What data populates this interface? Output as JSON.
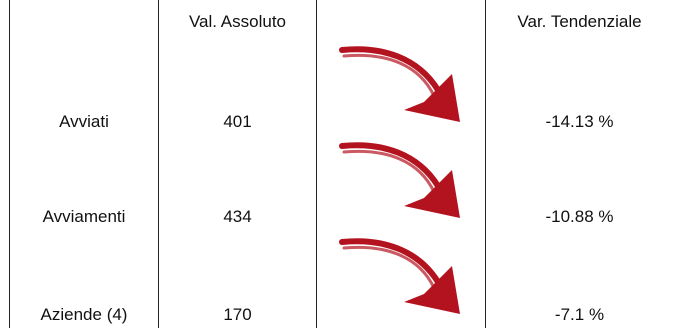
{
  "table": {
    "headers": {
      "absolute_value": "Val. Assoluto",
      "trend_variation": "Var. Tendenziale"
    },
    "rows": [
      {
        "label": "Avviati",
        "value": "401",
        "trend": "-14.13 %",
        "trend_icon": "red-down-arrow-icon"
      },
      {
        "label": "Avviamenti",
        "value": "434",
        "trend": "-10.88 %",
        "trend_icon": "red-down-arrow-icon"
      },
      {
        "label": "Aziende (4)",
        "value": "170",
        "trend": "-7.1 %",
        "trend_icon": "red-down-arrow-icon"
      }
    ]
  },
  "colors": {
    "arrow": "#b3121f",
    "grid": "#222222",
    "text": "#111111"
  }
}
